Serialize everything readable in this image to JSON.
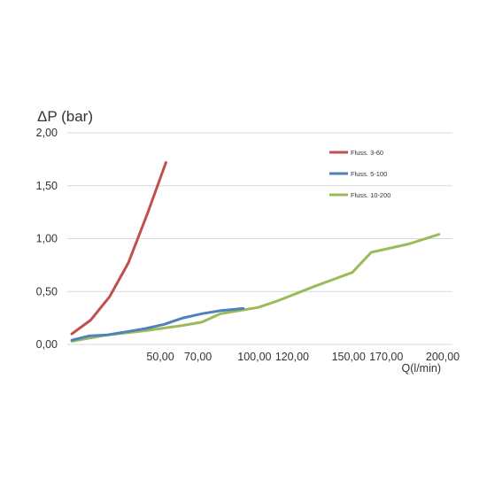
{
  "chart_data": {
    "type": "line",
    "ylabel": "ΔP (bar)",
    "xlabel": "Q(l/min)",
    "x_ticks": [
      "50,00",
      "70,00",
      "100,00",
      "120,00",
      "150,00",
      "170,00",
      "200,00"
    ],
    "x_tick_values": [
      50,
      70,
      100,
      120,
      150,
      170,
      200
    ],
    "y_ticks": [
      "0,00",
      "0,50",
      "1,00",
      "1,50",
      "2,00"
    ],
    "y_tick_values": [
      0,
      0.5,
      1.0,
      1.5,
      2.0
    ],
    "xlim": [
      2,
      200
    ],
    "ylim": [
      0,
      2.0
    ],
    "grid": "horizontal",
    "legend_position": "top-right",
    "series": [
      {
        "name": "Fluss. 3-60",
        "color": "#c0504d",
        "x": [
          3,
          13,
          23,
          33,
          43,
          53
        ],
        "y": [
          0.1,
          0.23,
          0.45,
          0.77,
          1.23,
          1.72
        ]
      },
      {
        "name": "Fluss. 5-100",
        "color": "#4f81bd",
        "x": [
          3,
          12,
          22,
          32,
          42,
          52,
          62,
          72,
          82,
          94
        ],
        "y": [
          0.04,
          0.08,
          0.09,
          0.12,
          0.15,
          0.19,
          0.25,
          0.29,
          0.32,
          0.34
        ]
      },
      {
        "name": "Fluss. 10-200",
        "color": "#9bbb59",
        "x": [
          3,
          22,
          42,
          62,
          72,
          82,
          102,
          112,
          132,
          152,
          162,
          182,
          198
        ],
        "y": [
          0.03,
          0.09,
          0.13,
          0.18,
          0.21,
          0.29,
          0.35,
          0.41,
          0.55,
          0.68,
          0.87,
          0.95,
          1.04
        ]
      }
    ]
  }
}
